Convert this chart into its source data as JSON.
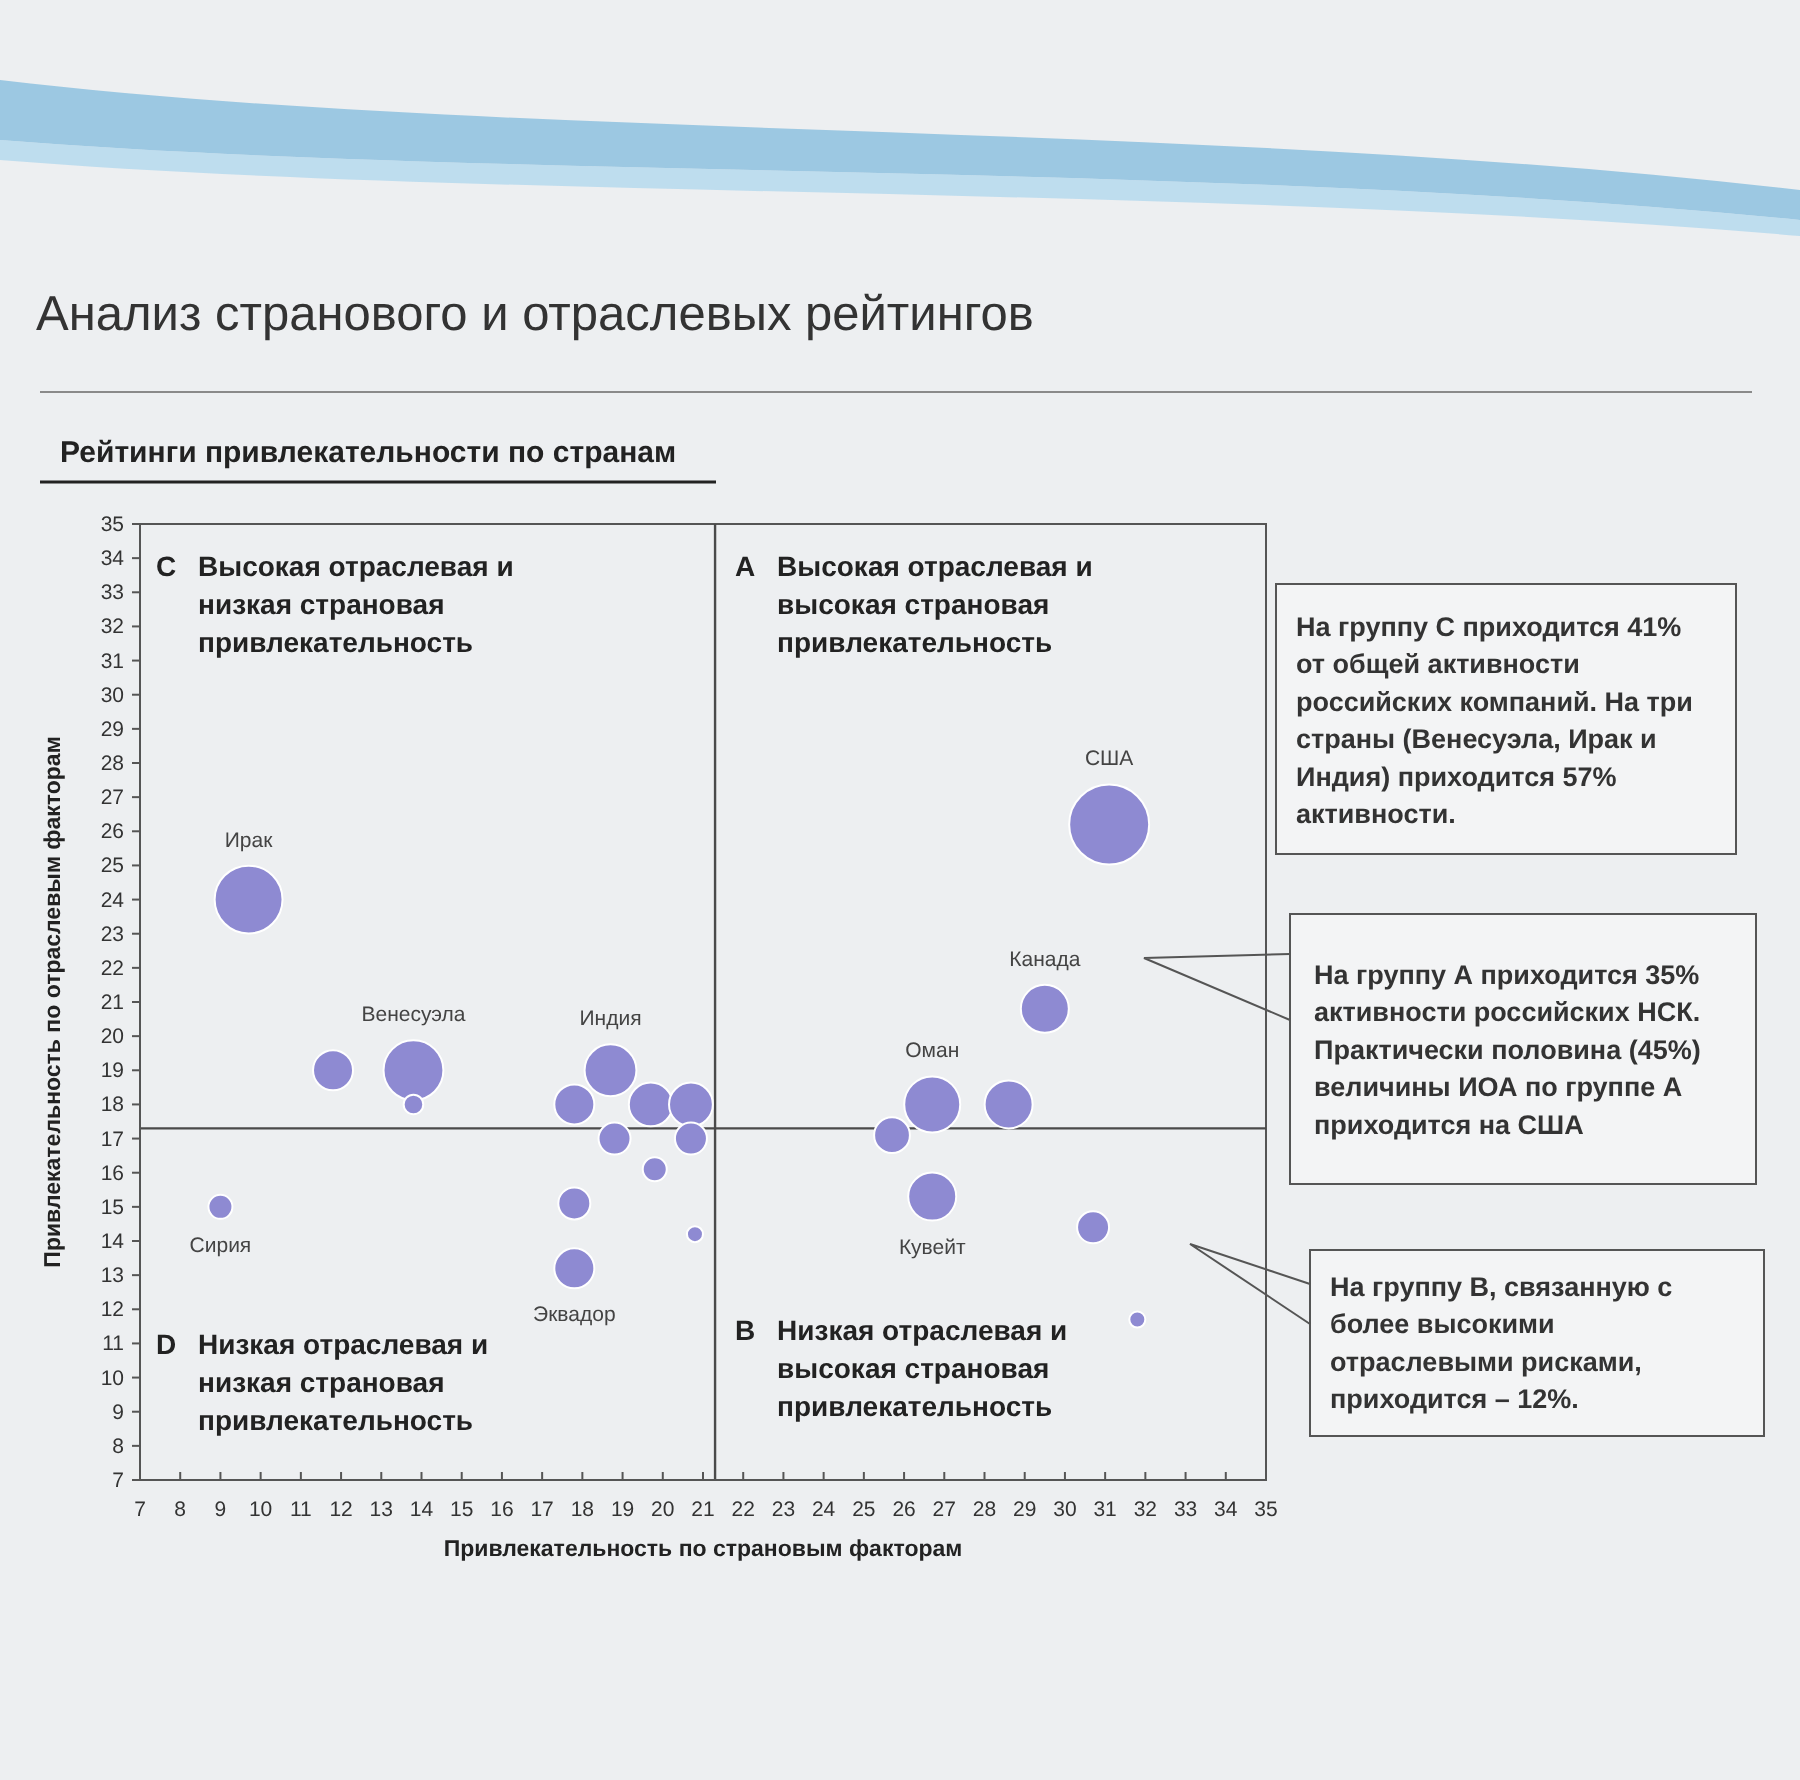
{
  "chart_data": {
    "type": "bubble",
    "title": "Анализ странового и отраслевых рейтингов",
    "subtitle": "Рейтинги привлекательности по странам",
    "xlabel": "Привлекательность по страновым факторам",
    "ylabel": "Привлекательность по отраслевым факторам",
    "series": [
      {
        "color": "#8e8ad2",
        "x": [
          9.7,
          9.0,
          11.8,
          13.8,
          13.8,
          18.7,
          17.8,
          19.7,
          20.7,
          18.8,
          20.7,
          19.8,
          17.8,
          17.8,
          20.8,
          26.7,
          30.7,
          31.8,
          25.7,
          26.7,
          28.6,
          29.5,
          31.1
        ],
        "values": [
          24.0,
          15.0,
          19.0,
          19.0,
          18.0,
          19.0,
          18.0,
          18.0,
          18.0,
          17.0,
          17.0,
          16.1,
          15.1,
          13.2,
          14.2,
          15.3,
          14.4,
          11.7,
          17.1,
          18.0,
          18.0,
          20.8,
          26.2
        ],
        "sizes": [
          0.72,
          0.09,
          0.25,
          0.56,
          0.06,
          0.42,
          0.25,
          0.3,
          0.3,
          0.16,
          0.16,
          0.09,
          0.16,
          0.25,
          0.04,
          0.36,
          0.16,
          0.04,
          0.2,
          0.49,
          0.36,
          0.36,
          1
        ]
      }
    ],
    "xlim": [
      7,
      35
    ],
    "ylim": [
      7,
      35
    ],
    "xticks": [
      7,
      8,
      9,
      10,
      11,
      12,
      13,
      14,
      15,
      16,
      17,
      18,
      19,
      20,
      21,
      22,
      23,
      24,
      25,
      26,
      27,
      28,
      29,
      30,
      31,
      32,
      33,
      34,
      35
    ],
    "yticks": [
      7,
      8,
      9,
      10,
      11,
      12,
      13,
      14,
      15,
      16,
      17,
      18,
      19,
      20,
      21,
      22,
      23,
      24,
      25,
      26,
      27,
      28,
      29,
      30,
      31,
      32,
      33,
      34,
      35
    ],
    "ref_lines": [
      {
        "axis": "x",
        "value": 21.3,
        "color": "#4a4a4a"
      },
      {
        "axis": "y",
        "value": 17.3,
        "color": "#4a4a4a"
      }
    ],
    "annotations": [
      "C Высокая отраслевая и низкая страновая привлекательность",
      "A Высокая отраслевая и высокая страновая привлекательность",
      "D Низкая отраслевая и низкая страновая привлекательность",
      "B Низкая отраслевая и высокая страновая привлекательность",
      "На группу С приходится 41% от общей активности российских компаний. На три страны (Венесуэла, Ирак и Индия) приходится 57% активности.",
      "На группу А приходится 35% активности российских НСК. Практически половина (45%) величины ИОА по группе А приходится на США",
      "На группу В, связанную с более высокими отраслевыми рисками, приходится – 12%.",
      {
        "text": "Ирак",
        "x": 9.7,
        "y": 24.0
      },
      {
        "text": "Венесуэла",
        "x": 13.8,
        "y": 19.0
      },
      {
        "text": "Индия",
        "x": 18.7,
        "y": 19.0
      },
      {
        "text": "США",
        "x": 31.1,
        "y": 26.2
      },
      {
        "text": "Канада",
        "x": 29.5,
        "y": 20.8
      },
      {
        "text": "Оман",
        "x": 26.7,
        "y": 18.0
      },
      {
        "text": "Кувейт",
        "x": 26.7,
        "y": 15.3
      },
      {
        "text": "Сирия",
        "x": 9.0,
        "y": 15.0
      },
      {
        "text": "Эквадор",
        "x": 17.8,
        "y": 13.2
      }
    ]
  }
}
